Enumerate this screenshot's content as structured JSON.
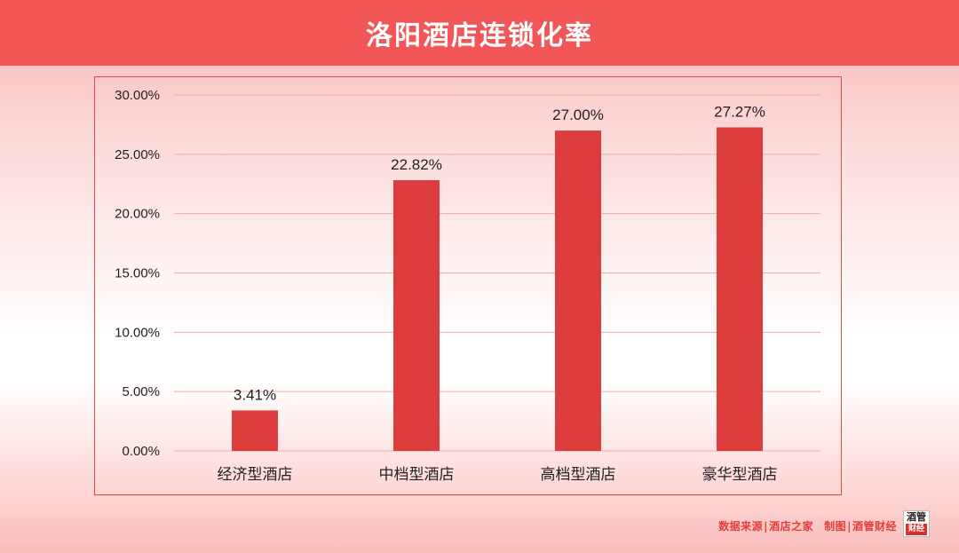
{
  "header": {
    "title": "洛阳酒店连锁化率"
  },
  "footer": {
    "source_label": "数据来源",
    "source_name": "酒店之家",
    "made_label": "制图",
    "made_name": "酒管财经",
    "logo_top": "酒管",
    "logo_bottom": "财经"
  },
  "colors": {
    "bar": "#dc3c3b",
    "header": "#f25656",
    "grid": "#f2aaa8",
    "frame": "#e24a48"
  },
  "chart_data": {
    "type": "bar",
    "title": "洛阳酒店连锁化率",
    "categories": [
      "经济型酒店",
      "中档型酒店",
      "高档型酒店",
      "豪华型酒店"
    ],
    "values": [
      3.41,
      22.82,
      27.0,
      27.27
    ],
    "value_labels": [
      "3.41%",
      "22.82%",
      "27.00%",
      "27.27%"
    ],
    "ylim": [
      0,
      30
    ],
    "yticks": [
      "0.00%",
      "5.00%",
      "10.00%",
      "15.00%",
      "20.00%",
      "25.00%",
      "30.00%"
    ],
    "grid": true,
    "legend": "none"
  }
}
